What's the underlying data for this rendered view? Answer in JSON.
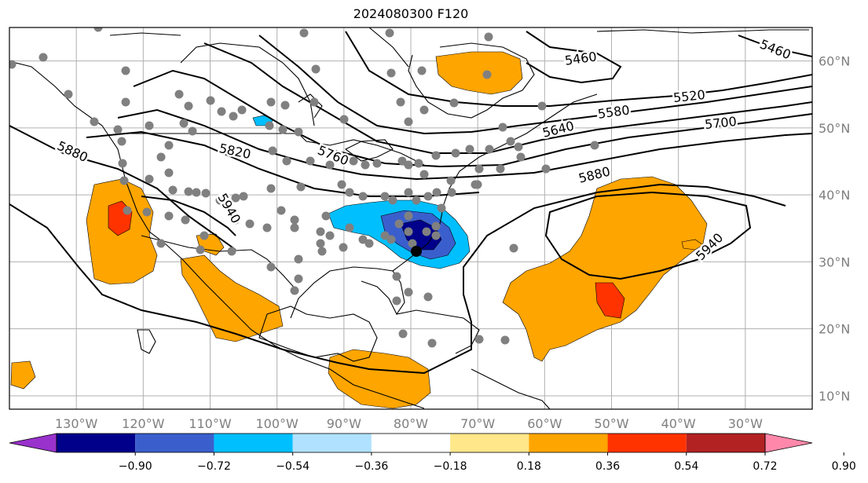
{
  "title": "2024080300 F120",
  "map": {
    "lat_labels": [
      "60°N",
      "50°N",
      "40°N",
      "30°N",
      "20°N",
      "10°N"
    ],
    "lat_values": [
      60,
      50,
      40,
      30,
      20,
      10
    ],
    "lon_labels": [
      "130°W",
      "120°W",
      "110°W",
      "100°W",
      "90°W",
      "80°W",
      "70°W",
      "60°W",
      "50°W",
      "40°W",
      "30°W"
    ],
    "lon_values": [
      -130,
      -120,
      -110,
      -100,
      -90,
      -80,
      -70,
      -60,
      -50,
      -40,
      -30
    ],
    "extent": {
      "lon_min": -140,
      "lon_max": -20,
      "lat_min": 8,
      "lat_max": 65
    },
    "contour_labels": [
      "5460",
      "5460",
      "5520",
      "5580",
      "5640",
      "5700",
      "5820",
      "5760",
      "5880",
      "5880",
      "5940",
      "5940"
    ],
    "colors": {
      "land_outline": "#000000",
      "grid": "#b0b0b0",
      "station_dot": "#808080",
      "orange": "#ffa500",
      "red": "#ff3300",
      "light_blue": "#00bfff",
      "mid_blue": "#3a5fcd",
      "navy": "#00008b"
    }
  },
  "colorbar": {
    "ticks": [
      "−0.90",
      "−0.72",
      "−0.54",
      "−0.36",
      "−0.18",
      "0.18",
      "0.36",
      "0.54",
      "0.72",
      "0.90"
    ],
    "colors": [
      "#9932cc",
      "#00008b",
      "#3a5fcd",
      "#00bfff",
      "#b0e2ff",
      "#ffffff",
      "#ffe78a",
      "#ffa500",
      "#ff3300",
      "#b22222",
      "#ff88aa"
    ]
  }
}
